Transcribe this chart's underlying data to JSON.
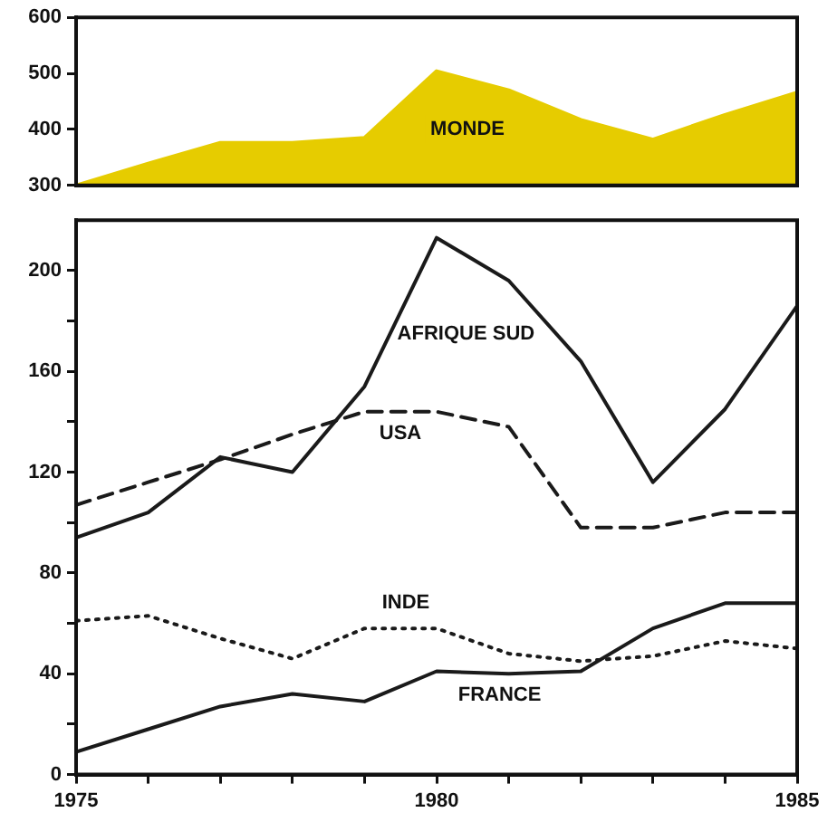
{
  "chart_data": [
    {
      "type": "area",
      "x": [
        1975,
        1976,
        1977,
        1978,
        1979,
        1980,
        1981,
        1982,
        1983,
        1984,
        1985
      ],
      "series": [
        {
          "name": "MONDE",
          "color": "#e6cc00",
          "values": [
            300,
            339,
            376,
            376,
            385,
            504,
            470,
            417,
            382,
            426,
            466
          ]
        }
      ],
      "xlim": [
        1975,
        1985
      ],
      "ylim": [
        300,
        600
      ],
      "yticks": [
        300,
        400,
        500,
        600
      ],
      "tick_labels": "y",
      "grid": false,
      "marker": "none"
    },
    {
      "type": "line",
      "x": [
        1975,
        1976,
        1977,
        1978,
        1979,
        1980,
        1981,
        1982,
        1983,
        1984,
        1985
      ],
      "series": [
        {
          "name": "AFRIQUE SUD",
          "color": "#1a1a1a",
          "line_style": "solid",
          "values": [
            94,
            104,
            126,
            120,
            154,
            213,
            196,
            164,
            116,
            145,
            186
          ]
        },
        {
          "name": "USA",
          "color": "#1a1a1a",
          "line_style": "dashed",
          "values": [
            107,
            116,
            125,
            135,
            144,
            144,
            138,
            98,
            98,
            104,
            104
          ]
        },
        {
          "name": "INDE",
          "color": "#1a1a1a",
          "line_style": "dotted",
          "values": [
            61,
            63,
            54,
            46,
            58,
            58,
            48,
            45,
            47,
            53,
            50
          ]
        },
        {
          "name": "FRANCE",
          "color": "#1a1a1a",
          "line_style": "solid",
          "values": [
            9,
            18,
            27,
            32,
            29,
            41,
            40,
            41,
            58,
            68,
            68
          ]
        }
      ],
      "xlim": [
        1975,
        1985
      ],
      "ylim": [
        0,
        220
      ],
      "xticks": [
        1975,
        {
          "value": 1976,
          "label": null
        },
        {
          "value": 1977,
          "label": null
        },
        {
          "value": 1978,
          "label": null
        },
        {
          "value": 1979,
          "label": null
        },
        1980,
        {
          "value": 1981,
          "label": null
        },
        {
          "value": 1982,
          "label": null
        },
        {
          "value": 1983,
          "label": null
        },
        {
          "value": 1984,
          "label": null
        },
        1985
      ],
      "yticks": [
        0,
        {
          "value": 20,
          "label": null
        },
        40,
        {
          "value": 60,
          "label": null
        },
        80,
        {
          "value": 100,
          "label": null
        },
        120,
        {
          "value": 140,
          "label": null
        },
        160,
        {
          "value": 180,
          "label": null
        },
        200
      ],
      "grid": false,
      "marker": "none"
    }
  ]
}
